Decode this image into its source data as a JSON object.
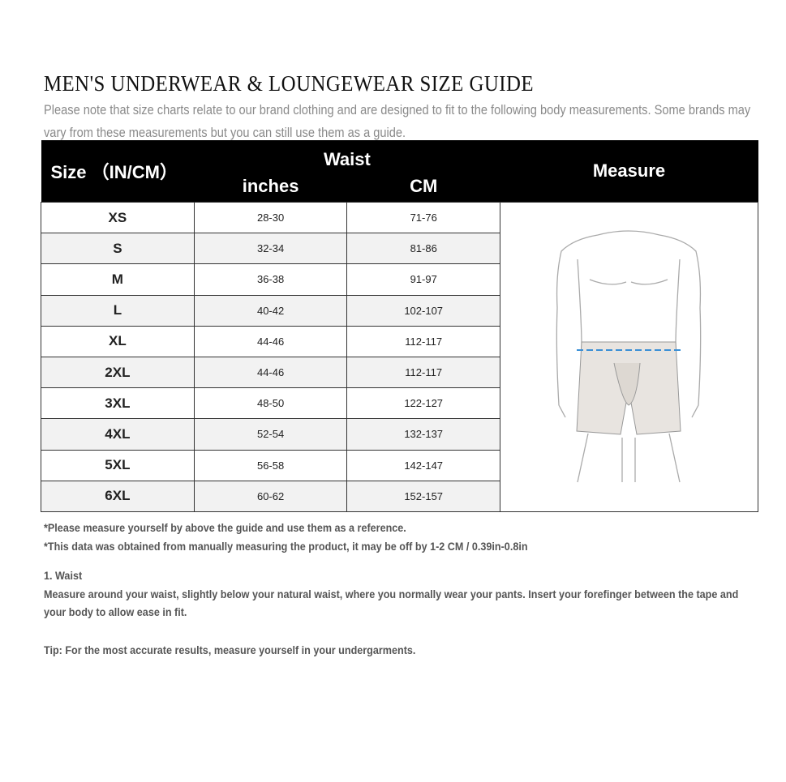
{
  "title": "MEN'S UNDERWEAR & LOUNGEWEAR SIZE GUIDE",
  "intro": "Please note that size charts relate to our brand clothing and are designed to fit to the following body measurements. Some brands may vary from these measurements but you can still use them as a guide.",
  "table": {
    "header_size": "Size （IN/CM）",
    "header_waist": "Waist",
    "header_inches": "inches",
    "header_cm": "CM",
    "header_measure": "Measure",
    "rows": [
      {
        "size": "XS",
        "inches": "28-30",
        "cm": "71-76"
      },
      {
        "size": "S",
        "inches": "32-34",
        "cm": "81-86"
      },
      {
        "size": "M",
        "inches": "36-38",
        "cm": "91-97"
      },
      {
        "size": "L",
        "inches": "40-42",
        "cm": "102-107"
      },
      {
        "size": "XL",
        "inches": "44-46",
        "cm": "112-117"
      },
      {
        "size": "2XL",
        "inches": "44-46",
        "cm": "112-117"
      },
      {
        "size": "3XL",
        "inches": "48-50",
        "cm": "122-127"
      },
      {
        "size": "4XL",
        "inches": "52-54",
        "cm": "132-137"
      },
      {
        "size": "5XL",
        "inches": "56-58",
        "cm": "142-147"
      },
      {
        "size": "6XL",
        "inches": "60-62",
        "cm": "152-157"
      }
    ]
  },
  "notes": {
    "note1": "*Please measure yourself by above the guide and use them as a reference.",
    "note2": "*This data was obtained from manually measuring the product, it may be off by 1-2 CM / 0.39in-0.8in",
    "waist_heading": "1. Waist",
    "waist_text": "Measure around your waist, slightly below your natural waist, where you normally wear your pants. Insert your forefinger between the tape and your body to allow ease in fit.",
    "tip": "Tip: For the most accurate results, measure yourself in your undergarments."
  },
  "colors": {
    "header_bg": "#000000",
    "tape": "#3a8fd6",
    "shorts": "#e8e4e0"
  }
}
